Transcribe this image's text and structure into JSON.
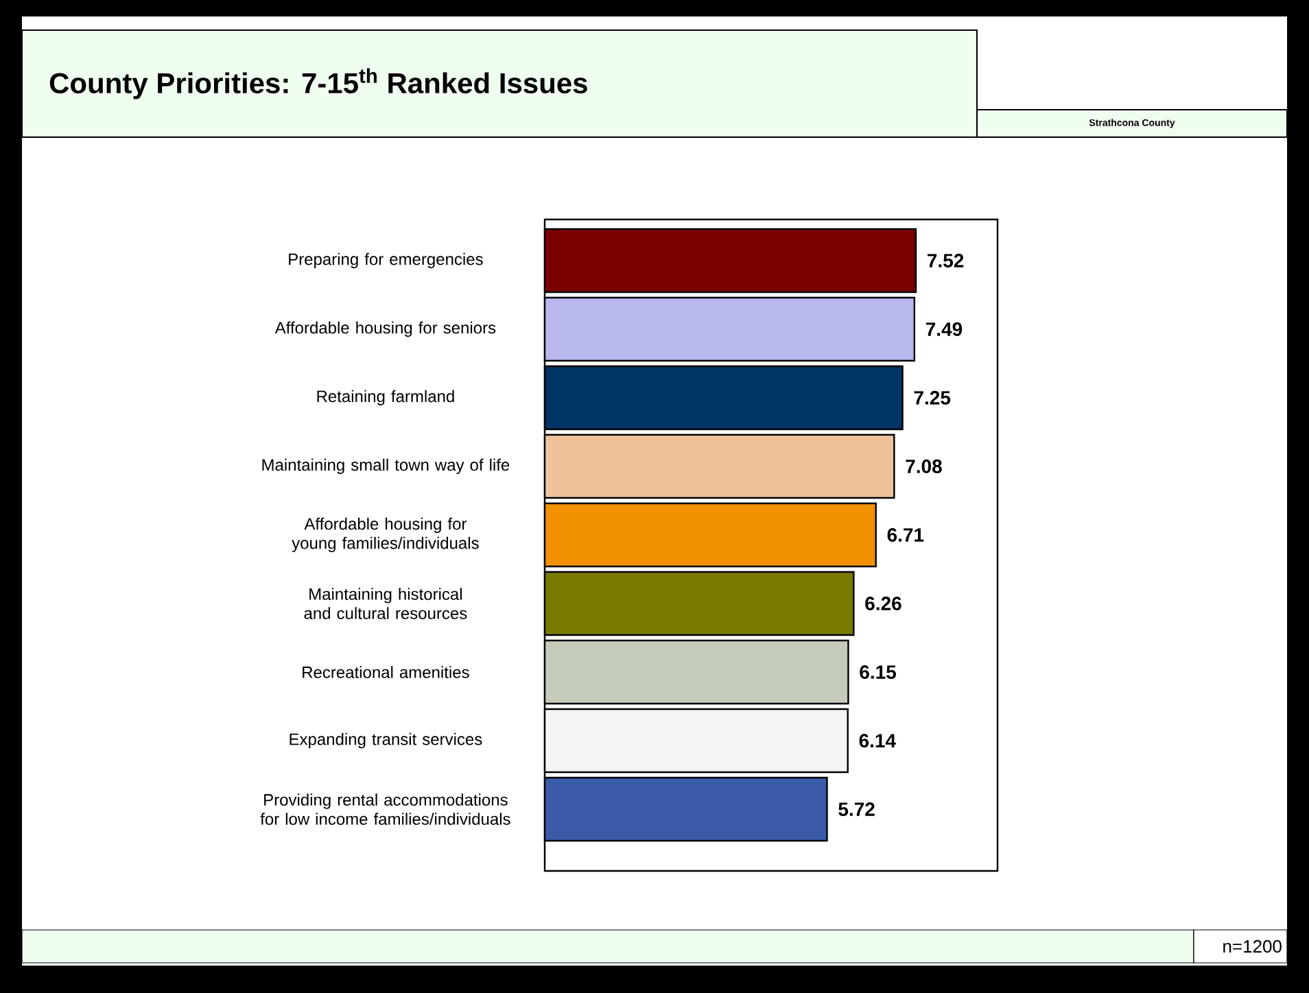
{
  "chart_data": {
    "type": "bar",
    "orientation": "horizontal",
    "title": "County Priorities: 7-15$^{th}$ Ranked Issues",
    "categories": [
      "Preparing for emergencies",
      "Affordable housing for seniors",
      "Retaining farmland",
      "Maintaining small town way of life",
      "Affordable housing for young families/individuals",
      "Maintaining historical and cultural resources",
      "Recreational amenities",
      "Expanding transit services",
      "Providing rental accommodations for low income families/individuals"
    ],
    "values": [
      7.52,
      7.49,
      7.25,
      7.08,
      6.71,
      6.26,
      6.15,
      6.14,
      5.72
    ],
    "colors": [
      "#7a0000",
      "#b8b8ee",
      "#003366",
      "#efc39a",
      "#f39200",
      "#7a7a00",
      "#c4cbbb",
      "#f4f4f4",
      "#3a5ba8"
    ],
    "data_labels": true,
    "annotations": [
      "Strathcona County",
      "n=1200"
    ]
  }
}
